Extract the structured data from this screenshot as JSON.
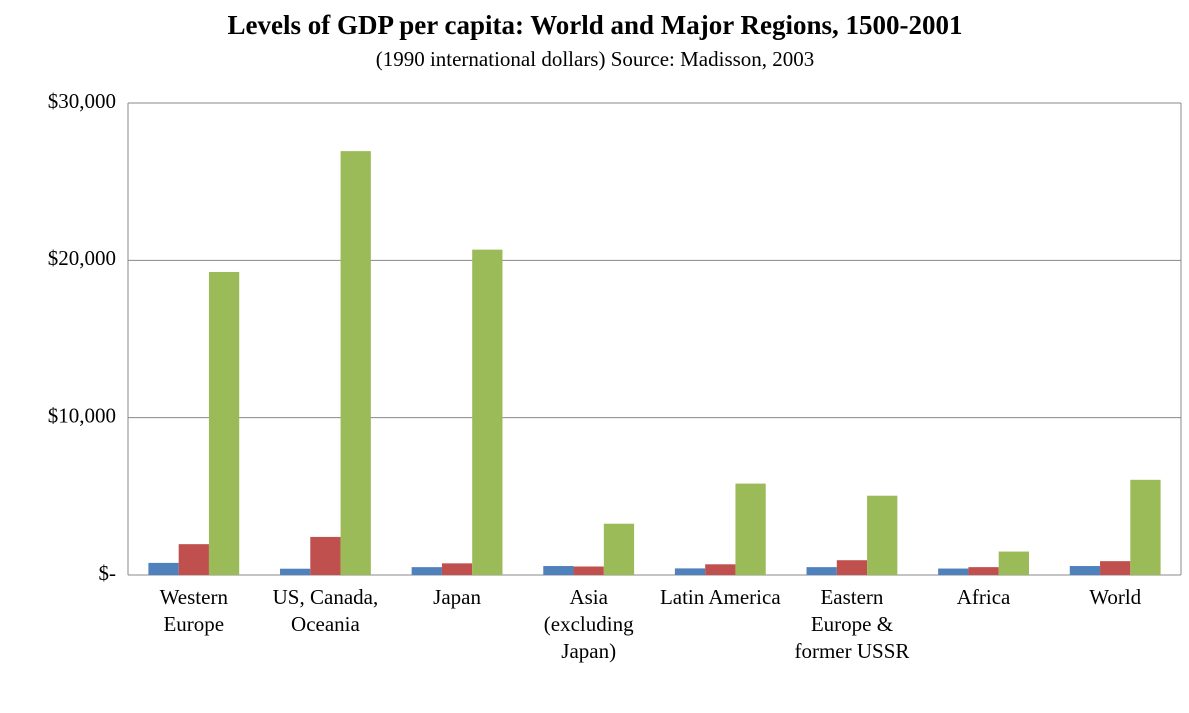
{
  "chart_data": {
    "type": "bar",
    "title": "Levels of GDP per capita: World and Major Regions, 1500-2001",
    "subtitle": "(1990 international dollars) Source: Madisson, 2003",
    "categories": [
      "Western Europe",
      "US, Canada, Oceania",
      "Japan",
      "Asia (excluding Japan)",
      "Latin America",
      "Eastern Europe & former USSR",
      "Africa",
      "World"
    ],
    "series": [
      {
        "color": "#4f81bd",
        "values": [
          770,
          400,
          500,
          570,
          420,
          500,
          410,
          570
        ]
      },
      {
        "color": "#c0504d",
        "values": [
          1960,
          2420,
          740,
          540,
          680,
          940,
          500,
          880
        ]
      },
      {
        "color": "#9bbb59",
        "values": [
          19260,
          26940,
          20680,
          3260,
          5810,
          5040,
          1490,
          6050
        ]
      }
    ],
    "ylim": [
      0,
      30000
    ],
    "yticks": [
      {
        "value": 0,
        "label": "$-"
      },
      {
        "value": 10000,
        "label": "$10,000"
      },
      {
        "value": 20000,
        "label": "$20,000"
      },
      {
        "value": 30000,
        "label": "$30,000"
      }
    ],
    "grid": true
  }
}
